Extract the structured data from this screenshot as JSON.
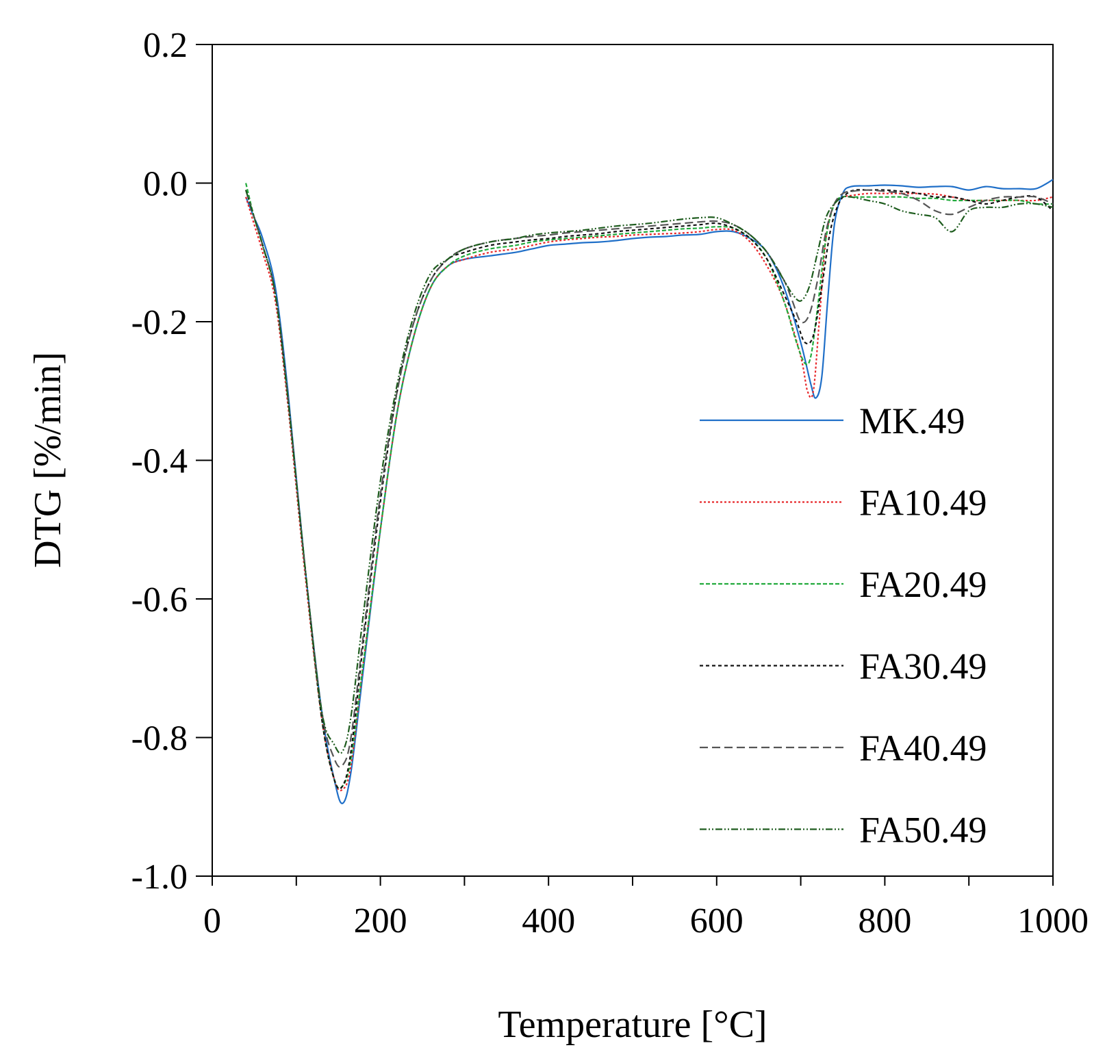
{
  "chart_data": {
    "type": "line",
    "title": "",
    "xlabel": "Temperature [°C]",
    "ylabel": "DTG [%/min]",
    "xlim": [
      0,
      1000
    ],
    "ylim": [
      -1.0,
      0.2
    ],
    "x_ticks": [
      0,
      200,
      400,
      600,
      800,
      1000
    ],
    "x_tick_labels": [
      "0",
      "200",
      "400",
      "600",
      "800",
      "1000"
    ],
    "y_ticks": [
      -1.0,
      -0.8,
      -0.6,
      -0.4,
      -0.2,
      0.0,
      0.2
    ],
    "y_tick_labels": [
      "-1.0",
      "-0.8",
      "-0.6",
      "-0.4",
      "-0.2",
      "0.0",
      "0.2"
    ],
    "grid": false,
    "legend_position": "right",
    "series": [
      {
        "name": "MK.49",
        "color": "#1f6fc8",
        "dash": "solid",
        "x": [
          40,
          50,
          60,
          75,
          90,
          110,
          130,
          145,
          155,
          165,
          180,
          200,
          220,
          240,
          260,
          280,
          300,
          330,
          360,
          380,
          400,
          420,
          440,
          460,
          480,
          500,
          520,
          540,
          560,
          580,
          600,
          620,
          640,
          660,
          680,
          700,
          712,
          718,
          725,
          732,
          740,
          750,
          760,
          780,
          800,
          820,
          840,
          860,
          880,
          900,
          920,
          940,
          960,
          980,
          1000
        ],
        "y": [
          -0.02,
          -0.05,
          -0.08,
          -0.15,
          -0.3,
          -0.55,
          -0.76,
          -0.86,
          -0.895,
          -0.85,
          -0.7,
          -0.5,
          -0.33,
          -0.22,
          -0.15,
          -0.12,
          -0.11,
          -0.105,
          -0.1,
          -0.095,
          -0.09,
          -0.088,
          -0.086,
          -0.085,
          -0.083,
          -0.08,
          -0.078,
          -0.077,
          -0.075,
          -0.074,
          -0.07,
          -0.07,
          -0.08,
          -0.1,
          -0.15,
          -0.23,
          -0.29,
          -0.31,
          -0.28,
          -0.17,
          -0.06,
          -0.015,
          -0.005,
          -0.004,
          -0.003,
          -0.004,
          -0.006,
          -0.005,
          -0.005,
          -0.01,
          -0.005,
          -0.008,
          -0.008,
          -0.008,
          0.005
        ]
      },
      {
        "name": "FA10.49",
        "color": "#e8272a",
        "dash": "3,3",
        "x": [
          40,
          50,
          60,
          75,
          90,
          110,
          130,
          145,
          155,
          165,
          180,
          200,
          220,
          240,
          260,
          280,
          300,
          330,
          360,
          380,
          400,
          420,
          440,
          460,
          480,
          500,
          520,
          540,
          560,
          580,
          600,
          620,
          640,
          660,
          680,
          700,
          708,
          715,
          722,
          730,
          740,
          750,
          760,
          780,
          800,
          820,
          840,
          860,
          880,
          900,
          920,
          940,
          960,
          980,
          1000
        ],
        "y": [
          -0.02,
          -0.06,
          -0.1,
          -0.17,
          -0.32,
          -0.56,
          -0.77,
          -0.86,
          -0.875,
          -0.84,
          -0.69,
          -0.5,
          -0.33,
          -0.22,
          -0.15,
          -0.12,
          -0.11,
          -0.1,
          -0.095,
          -0.09,
          -0.085,
          -0.082,
          -0.08,
          -0.078,
          -0.077,
          -0.075,
          -0.074,
          -0.073,
          -0.072,
          -0.07,
          -0.067,
          -0.068,
          -0.085,
          -0.12,
          -0.17,
          -0.25,
          -0.3,
          -0.3,
          -0.2,
          -0.08,
          -0.03,
          -0.02,
          -0.018,
          -0.015,
          -0.015,
          -0.015,
          -0.015,
          -0.016,
          -0.02,
          -0.025,
          -0.025,
          -0.025,
          -0.025,
          -0.025,
          -0.02
        ]
      },
      {
        "name": "FA20.49",
        "color": "#22aa3c",
        "dash": "6,3",
        "x": [
          40,
          50,
          60,
          75,
          90,
          110,
          130,
          145,
          155,
          165,
          180,
          200,
          220,
          240,
          260,
          280,
          300,
          330,
          360,
          380,
          400,
          420,
          440,
          460,
          480,
          500,
          520,
          540,
          560,
          580,
          600,
          620,
          640,
          660,
          680,
          695,
          705,
          712,
          720,
          730,
          740,
          750,
          760,
          780,
          800,
          820,
          840,
          860,
          880,
          900,
          920,
          940,
          960,
          980,
          1000
        ],
        "y": [
          0.0,
          -0.05,
          -0.09,
          -0.16,
          -0.31,
          -0.55,
          -0.77,
          -0.86,
          -0.87,
          -0.83,
          -0.69,
          -0.5,
          -0.33,
          -0.22,
          -0.15,
          -0.12,
          -0.105,
          -0.095,
          -0.09,
          -0.085,
          -0.082,
          -0.08,
          -0.078,
          -0.076,
          -0.074,
          -0.072,
          -0.07,
          -0.068,
          -0.066,
          -0.065,
          -0.063,
          -0.065,
          -0.08,
          -0.11,
          -0.17,
          -0.23,
          -0.26,
          -0.25,
          -0.18,
          -0.08,
          -0.03,
          -0.02,
          -0.02,
          -0.02,
          -0.02,
          -0.02,
          -0.022,
          -0.022,
          -0.025,
          -0.025,
          -0.025,
          -0.025,
          -0.025,
          -0.03,
          -0.03
        ]
      },
      {
        "name": "FA30.49",
        "color": "#111111",
        "dash": "5,4",
        "x": [
          40,
          50,
          60,
          75,
          90,
          110,
          130,
          145,
          155,
          165,
          180,
          200,
          220,
          240,
          260,
          280,
          300,
          330,
          360,
          380,
          400,
          420,
          440,
          460,
          480,
          500,
          520,
          540,
          560,
          580,
          600,
          620,
          640,
          660,
          680,
          695,
          705,
          715,
          725,
          735,
          745,
          755,
          765,
          780,
          800,
          820,
          840,
          860,
          880,
          900,
          920,
          940,
          960,
          980,
          1000
        ],
        "y": [
          -0.01,
          -0.05,
          -0.09,
          -0.16,
          -0.31,
          -0.55,
          -0.77,
          -0.86,
          -0.87,
          -0.82,
          -0.66,
          -0.46,
          -0.3,
          -0.2,
          -0.14,
          -0.11,
          -0.1,
          -0.09,
          -0.085,
          -0.082,
          -0.08,
          -0.077,
          -0.075,
          -0.073,
          -0.07,
          -0.068,
          -0.066,
          -0.064,
          -0.062,
          -0.06,
          -0.058,
          -0.065,
          -0.08,
          -0.11,
          -0.16,
          -0.2,
          -0.23,
          -0.22,
          -0.15,
          -0.07,
          -0.03,
          -0.015,
          -0.01,
          -0.01,
          -0.01,
          -0.012,
          -0.015,
          -0.02,
          -0.02,
          -0.025,
          -0.03,
          -0.025,
          -0.02,
          -0.02,
          -0.04
        ]
      },
      {
        "name": "FA40.49",
        "color": "#555555",
        "dash": "12,6",
        "x": [
          40,
          50,
          60,
          75,
          90,
          110,
          130,
          145,
          155,
          165,
          180,
          200,
          220,
          240,
          260,
          280,
          300,
          330,
          360,
          380,
          400,
          420,
          440,
          460,
          480,
          500,
          520,
          540,
          560,
          580,
          600,
          620,
          640,
          660,
          680,
          690,
          700,
          710,
          720,
          730,
          740,
          750,
          760,
          780,
          800,
          820,
          840,
          860,
          880,
          900,
          920,
          940,
          960,
          980,
          1000
        ],
        "y": [
          -0.01,
          -0.05,
          -0.09,
          -0.16,
          -0.31,
          -0.55,
          -0.76,
          -0.83,
          -0.84,
          -0.8,
          -0.65,
          -0.45,
          -0.3,
          -0.2,
          -0.14,
          -0.11,
          -0.095,
          -0.085,
          -0.08,
          -0.077,
          -0.075,
          -0.072,
          -0.07,
          -0.068,
          -0.066,
          -0.064,
          -0.062,
          -0.06,
          -0.058,
          -0.056,
          -0.055,
          -0.06,
          -0.075,
          -0.1,
          -0.14,
          -0.17,
          -0.2,
          -0.19,
          -0.14,
          -0.07,
          -0.03,
          -0.015,
          -0.012,
          -0.01,
          -0.012,
          -0.015,
          -0.025,
          -0.04,
          -0.045,
          -0.035,
          -0.025,
          -0.02,
          -0.02,
          -0.02,
          -0.03
        ]
      },
      {
        "name": "FA50.49",
        "color": "#1e5c1e",
        "dash": "10,3,2,3,2,3",
        "x": [
          40,
          50,
          60,
          75,
          90,
          110,
          130,
          145,
          155,
          165,
          180,
          200,
          220,
          240,
          260,
          280,
          300,
          330,
          360,
          380,
          400,
          420,
          440,
          460,
          480,
          500,
          520,
          540,
          560,
          580,
          600,
          620,
          640,
          660,
          680,
          690,
          700,
          710,
          720,
          730,
          740,
          750,
          760,
          780,
          800,
          820,
          840,
          860,
          880,
          900,
          920,
          940,
          960,
          980,
          1000
        ],
        "y": [
          -0.01,
          -0.05,
          -0.09,
          -0.16,
          -0.31,
          -0.55,
          -0.76,
          -0.81,
          -0.82,
          -0.77,
          -0.62,
          -0.43,
          -0.29,
          -0.19,
          -0.13,
          -0.11,
          -0.095,
          -0.085,
          -0.08,
          -0.075,
          -0.072,
          -0.07,
          -0.068,
          -0.065,
          -0.062,
          -0.06,
          -0.058,
          -0.055,
          -0.052,
          -0.05,
          -0.05,
          -0.06,
          -0.075,
          -0.1,
          -0.14,
          -0.16,
          -0.17,
          -0.15,
          -0.1,
          -0.05,
          -0.03,
          -0.02,
          -0.02,
          -0.025,
          -0.03,
          -0.04,
          -0.045,
          -0.05,
          -0.07,
          -0.04,
          -0.035,
          -0.035,
          -0.03,
          -0.03,
          -0.035
        ]
      }
    ]
  }
}
